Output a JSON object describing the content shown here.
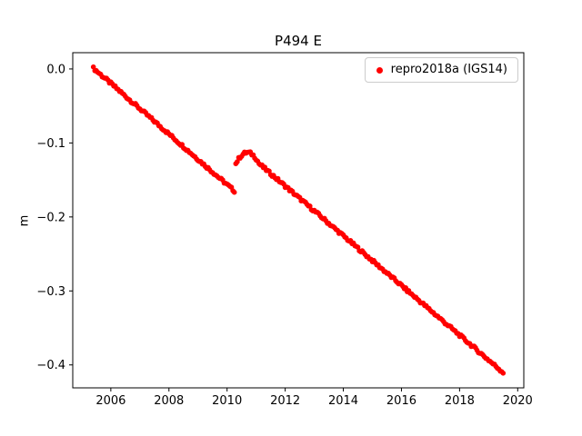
{
  "chart_data": {
    "type": "scatter",
    "title": "P494 E",
    "xlabel": "",
    "ylabel": "m",
    "legend_label": "repro2018a (IGS14)",
    "legend_position": "upper right",
    "series_color": "#ff0000",
    "axes_color": "#000000",
    "background_color": "#ffffff",
    "grid": false,
    "xlim": [
      2004.69,
      2020.21
    ],
    "ylim": [
      -0.431,
      0.022
    ],
    "xticks": [
      2006,
      2008,
      2010,
      2012,
      2014,
      2016,
      2018,
      2020
    ],
    "yticks": [
      0.0,
      -0.1,
      -0.2,
      -0.3,
      -0.4
    ],
    "ytick_labels": [
      "0.0",
      "−0.1",
      "−0.2",
      "−0.3",
      "−0.4"
    ],
    "x_start": 2005.4,
    "x_step": 0.05,
    "y": [
      0.001,
      -0.0007,
      -0.0024,
      -0.0041,
      -0.0058,
      -0.0076,
      -0.0093,
      -0.011,
      -0.0127,
      -0.0144,
      -0.0161,
      -0.0178,
      -0.0195,
      -0.0212,
      -0.0229,
      -0.0247,
      -0.0264,
      -0.0281,
      -0.0298,
      -0.0315,
      -0.0332,
      -0.0349,
      -0.0366,
      -0.0383,
      -0.04,
      -0.0418,
      -0.0435,
      -0.0452,
      -0.0469,
      -0.0486,
      -0.0503,
      -0.052,
      -0.0537,
      -0.0554,
      -0.0571,
      -0.0589,
      -0.0606,
      -0.0623,
      -0.064,
      -0.0657,
      -0.0674,
      -0.0691,
      -0.0708,
      -0.0725,
      -0.0742,
      -0.076,
      -0.0777,
      -0.0794,
      -0.0811,
      -0.0828,
      -0.0845,
      -0.0862,
      -0.0879,
      -0.0896,
      -0.0913,
      -0.0931,
      -0.0948,
      -0.0965,
      -0.0982,
      -0.0999,
      -0.1016,
      -0.1033,
      -0.105,
      -0.1067,
      -0.1084,
      -0.1102,
      -0.1119,
      -0.1136,
      -0.1153,
      -0.117,
      -0.1187,
      -0.1204,
      -0.1221,
      -0.1238,
      -0.1255,
      -0.1273,
      -0.129,
      -0.1307,
      -0.1324,
      -0.1341,
      -0.1358,
      -0.1375,
      -0.1392,
      -0.1409,
      -0.1426,
      -0.1444,
      -0.1461,
      -0.1478,
      -0.1495,
      -0.1512,
      -0.1529,
      -0.1546,
      -0.1563,
      -0.158,
      -0.1597,
      -0.1615,
      -0.1632,
      -0.1649,
      -0.128,
      -0.1245,
      -0.1214,
      -0.1189,
      -0.1168,
      -0.1151,
      -0.1139,
      -0.1132,
      -0.113,
      -0.1132,
      -0.1139,
      -0.1151,
      -0.1168,
      -0.1189,
      -0.1214,
      -0.1245,
      -0.128,
      -0.1297,
      -0.1314,
      -0.133,
      -0.1347,
      -0.1364,
      -0.1381,
      -0.1398,
      -0.1414,
      -0.1431,
      -0.1448,
      -0.1465,
      -0.1482,
      -0.1498,
      -0.1515,
      -0.1532,
      -0.1549,
      -0.1566,
      -0.1582,
      -0.1599,
      -0.1616,
      -0.1633,
      -0.165,
      -0.1666,
      -0.1683,
      -0.17,
      -0.1717,
      -0.1734,
      -0.175,
      -0.1767,
      -0.1784,
      -0.1801,
      -0.1818,
      -0.1834,
      -0.1851,
      -0.1868,
      -0.1885,
      -0.1902,
      -0.1918,
      -0.1935,
      -0.1952,
      -0.1969,
      -0.1986,
      -0.2002,
      -0.2019,
      -0.2036,
      -0.2053,
      -0.207,
      -0.2086,
      -0.2103,
      -0.212,
      -0.2137,
      -0.2154,
      -0.217,
      -0.2187,
      -0.2204,
      -0.2221,
      -0.2238,
      -0.2254,
      -0.2271,
      -0.2288,
      -0.2305,
      -0.2322,
      -0.2338,
      -0.2355,
      -0.2372,
      -0.2389,
      -0.2406,
      -0.2422,
      -0.2439,
      -0.2456,
      -0.2473,
      -0.249,
      -0.2506,
      -0.2523,
      -0.254,
      -0.2557,
      -0.2574,
      -0.259,
      -0.2607,
      -0.2624,
      -0.2641,
      -0.2658,
      -0.2674,
      -0.2691,
      -0.2708,
      -0.2725,
      -0.2742,
      -0.2758,
      -0.2775,
      -0.2792,
      -0.2809,
      -0.2826,
      -0.2842,
      -0.2859,
      -0.2876,
      -0.2893,
      -0.291,
      -0.2926,
      -0.2943,
      -0.296,
      -0.2977,
      -0.2994,
      -0.301,
      -0.3027,
      -0.3044,
      -0.3061,
      -0.3078,
      -0.3094,
      -0.3111,
      -0.3128,
      -0.3145,
      -0.3162,
      -0.3178,
      -0.3195,
      -0.3212,
      -0.3229,
      -0.3246,
      -0.3262,
      -0.3279,
      -0.3296,
      -0.3313,
      -0.333,
      -0.3346,
      -0.3363,
      -0.338,
      -0.3397,
      -0.3414,
      -0.343,
      -0.3447,
      -0.3464,
      -0.3481,
      -0.3498,
      -0.3514,
      -0.3531,
      -0.3548,
      -0.3565,
      -0.3582,
      -0.3598,
      -0.3615,
      -0.3632,
      -0.3649,
      -0.3666,
      -0.3682,
      -0.3699,
      -0.3716,
      -0.3733,
      -0.375,
      -0.3766,
      -0.3783,
      -0.38,
      -0.3817,
      -0.3834,
      -0.385,
      -0.3867,
      -0.3884,
      -0.3901,
      -0.3918,
      -0.3934,
      -0.3951,
      -0.3968,
      -0.3985,
      -0.4002,
      -0.4018,
      -0.4035,
      -0.4052,
      -0.4069,
      -0.4086,
      -0.4102
    ]
  }
}
